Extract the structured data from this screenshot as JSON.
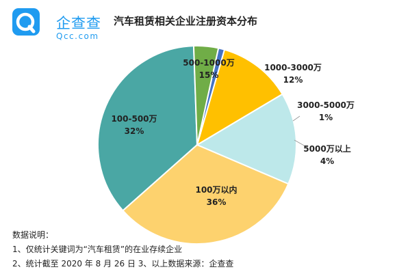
{
  "logo": {
    "name": "企查查",
    "domain": "Qcc.com",
    "icon": "qcc-logo-icon"
  },
  "chart_data": {
    "type": "pie",
    "title": "汽车租赁相关企业注册资本分布",
    "slices": [
      {
        "label": "100万以内",
        "percent_label": "36%",
        "value": 36,
        "color": "#4aa7a4"
      },
      {
        "label": "100-500万",
        "percent_label": "32%",
        "value": 32,
        "color": "#fdd26e"
      },
      {
        "label": "500-1000万",
        "percent_label": "15%",
        "value": 15,
        "color": "#bde8ea"
      },
      {
        "label": "1000-3000万",
        "percent_label": "12%",
        "value": 12,
        "color": "#ffc000"
      },
      {
        "label": "3000-5000万",
        "percent_label": "1%",
        "value": 1,
        "color": "#4472c4"
      },
      {
        "label": "5000万以上",
        "percent_label": "4%",
        "value": 4,
        "color": "#70ad47"
      }
    ]
  },
  "notes": {
    "heading": "数据说明：",
    "line1": "1、仅统计关键词为“汽车租赁”的在业存续企业",
    "line2": "2、统计截至 2020 年 8 月 26 日    3、以上数据来源：企查查"
  }
}
